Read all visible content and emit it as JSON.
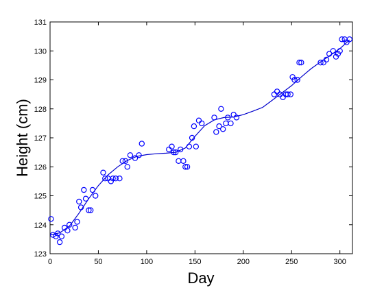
{
  "chart_data": {
    "type": "scatter",
    "title": "",
    "xlabel": "Day",
    "ylabel": "Height (cm)",
    "xlim": [
      0,
      313
    ],
    "ylim": [
      123,
      131
    ],
    "xticks": [
      "0",
      "50",
      "100",
      "150",
      "200",
      "250",
      "300"
    ],
    "yticks": [
      "123",
      "124",
      "125",
      "126",
      "127",
      "128",
      "129",
      "130",
      "131"
    ],
    "grid": false,
    "legend": "none",
    "series": [
      {
        "kind": "scatter",
        "color": "#0000ff",
        "marker": "open-circle",
        "x": [
          1,
          3,
          6,
          8,
          10,
          12,
          15,
          18,
          20,
          26,
          28,
          30,
          32,
          35,
          37,
          40,
          42,
          44,
          47,
          55,
          57,
          60,
          63,
          65,
          68,
          72,
          75,
          78,
          80,
          83,
          88,
          92,
          95,
          123,
          126,
          128,
          130,
          133,
          135,
          138,
          140,
          142,
          144,
          147,
          149,
          151,
          154,
          157,
          170,
          172,
          175,
          177,
          179,
          182,
          184,
          187,
          190,
          193,
          232,
          235,
          238,
          241,
          244,
          246,
          249,
          251,
          253,
          256,
          258,
          260,
          280,
          283,
          286,
          289,
          293,
          296,
          298,
          300,
          302,
          305,
          307,
          310
        ],
        "y": [
          124.2,
          123.65,
          123.6,
          123.7,
          123.4,
          123.6,
          123.9,
          123.8,
          124.0,
          123.9,
          124.1,
          124.8,
          124.6,
          125.2,
          124.9,
          124.5,
          124.5,
          125.2,
          125.0,
          125.8,
          125.6,
          125.6,
          125.5,
          125.6,
          125.6,
          125.6,
          126.2,
          126.2,
          126.0,
          126.4,
          126.3,
          126.4,
          126.8,
          126.6,
          126.7,
          126.5,
          126.5,
          126.2,
          126.6,
          126.2,
          126.0,
          126.0,
          126.7,
          127.0,
          127.4,
          126.7,
          127.6,
          127.5,
          127.7,
          127.2,
          127.4,
          128.0,
          127.3,
          127.5,
          127.7,
          127.5,
          127.8,
          127.7,
          128.5,
          128.6,
          128.5,
          128.4,
          128.5,
          128.5,
          128.5,
          129.1,
          129.0,
          129.0,
          129.6,
          129.6,
          129.6,
          129.6,
          129.7,
          129.9,
          130.0,
          129.8,
          129.9,
          130.0,
          130.4,
          130.4,
          130.3,
          130.4
        ]
      },
      {
        "kind": "line",
        "color": "#0000cc",
        "x": [
          0,
          10,
          20,
          30,
          40,
          50,
          60,
          70,
          80,
          90,
          100,
          110,
          120,
          130,
          140,
          150,
          160,
          170,
          180,
          190,
          200,
          210,
          220,
          230,
          240,
          250,
          260,
          270,
          280,
          290,
          300,
          310
        ],
        "y": [
          123.65,
          123.72,
          123.95,
          124.4,
          124.9,
          125.35,
          125.72,
          126.0,
          126.22,
          126.36,
          126.42,
          126.45,
          126.47,
          126.5,
          126.65,
          127.05,
          127.42,
          127.62,
          127.7,
          127.72,
          127.8,
          127.92,
          128.05,
          128.3,
          128.55,
          128.8,
          129.1,
          129.38,
          129.62,
          129.85,
          130.08,
          130.38
        ]
      }
    ]
  }
}
